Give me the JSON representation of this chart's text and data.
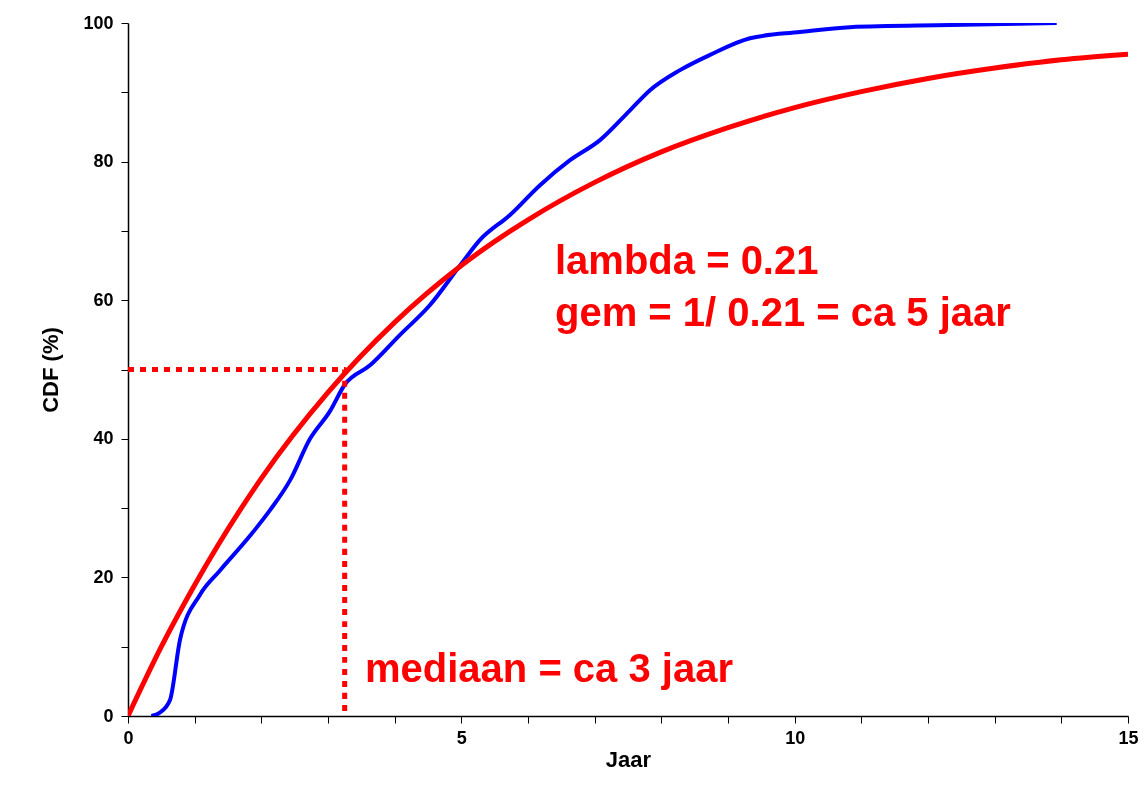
{
  "chart_data": {
    "type": "line",
    "xlabel": "Jaar",
    "ylabel": "CDF (%)",
    "xlim": [
      0,
      15
    ],
    "ylim": [
      0,
      100
    ],
    "xticks": [
      0,
      {
        "value": 1,
        "label": null
      },
      {
        "value": 2,
        "label": null
      },
      {
        "value": 3,
        "label": null
      },
      {
        "value": 4,
        "label": null
      },
      5,
      {
        "value": 6,
        "label": null
      },
      {
        "value": 7,
        "label": null
      },
      {
        "value": 8,
        "label": null
      },
      {
        "value": 9,
        "label": null
      },
      10,
      {
        "value": 11,
        "label": null
      },
      {
        "value": 12,
        "label": null
      },
      {
        "value": 13,
        "label": null
      },
      {
        "value": 14,
        "label": null
      },
      15
    ],
    "yticks": [
      0,
      {
        "value": 10,
        "label": null
      },
      20,
      {
        "value": 30,
        "label": null
      },
      40,
      {
        "value": 50,
        "label": null
      },
      60,
      {
        "value": 70,
        "label": null
      },
      80,
      {
        "value": 90,
        "label": null
      },
      100
    ],
    "grid": false,
    "marker": "none",
    "series": [
      {
        "color": "#0000ff",
        "line_style": "solid",
        "x": [
          0.35,
          0.48,
          0.63,
          0.78,
          1.08,
          1.38,
          1.83,
          2.13,
          2.43,
          2.73,
          3.03,
          3.25,
          3.63,
          4.08,
          4.53,
          4.98,
          5.28,
          5.73,
          6.18,
          6.63,
          7.08,
          7.53,
          7.83,
          8.28,
          8.73,
          9.33,
          10.08,
          10.83,
          12.33,
          13.93
        ],
        "values": [
          0,
          0.5,
          2.3,
          11,
          17.5,
          21,
          26,
          29.7,
          34,
          40,
          44,
          47.8,
          50.6,
          55,
          59.3,
          65,
          68.7,
          72.3,
          76.6,
          80.2,
          83.1,
          87.4,
          90.3,
          93.2,
          95.4,
          97.8,
          98.7,
          99.4,
          99.7,
          100
        ]
      },
      {
        "color": "#ff0000",
        "line_style": "solid",
        "x": [
          0,
          0.5,
          1,
          2,
          3,
          4,
          5,
          6,
          7,
          8,
          9,
          10,
          11,
          12,
          13,
          14,
          15
        ],
        "values": [
          0,
          10,
          18.9,
          34.3,
          46.7,
          56.8,
          65,
          71.6,
          77,
          81.4,
          84.9,
          87.8,
          90.1,
          92,
          93.5,
          94.7,
          95.5
        ]
      },
      {
        "color": "#ff0000",
        "line_style": "dashed",
        "x": [
          0,
          3.25,
          3.25
        ],
        "values": [
          50,
          50,
          0
        ]
      }
    ],
    "annotations": [
      "lambda = 0.21",
      "gem = 1/ 0.21 = ca 5 jaar",
      "mediaan = ca 3 jaar"
    ]
  }
}
